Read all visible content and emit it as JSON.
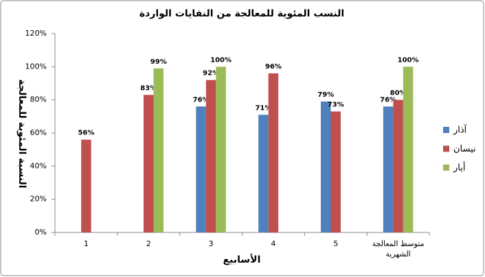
{
  "chart_data": {
    "type": "bar",
    "title": "النسب المئوية للمعالجة من النفايات الواردة",
    "x_label": "الأسابيع",
    "y_label": "النسبة المئوية للمعالجة",
    "categories": [
      "1",
      "2",
      "3",
      "4",
      "5",
      "متوسط المعالجة الشهرية"
    ],
    "series": [
      {
        "name": "آذار",
        "color": "#4f81bd",
        "values": [
          null,
          null,
          76,
          71,
          79,
          76
        ],
        "value_labels": [
          null,
          null,
          "76%",
          "71%",
          "79%",
          "76%"
        ]
      },
      {
        "name": "نيسان",
        "color": "#c0504d",
        "values": [
          56,
          83,
          92,
          96,
          73,
          80
        ],
        "value_labels": [
          "56%",
          "83%",
          "92%",
          "96%",
          "73%",
          "80%"
        ]
      },
      {
        "name": "أيار",
        "color": "#9bbb59",
        "values": [
          null,
          99,
          100,
          null,
          null,
          100
        ],
        "value_labels": [
          null,
          "99%",
          "100%",
          null,
          null,
          "100%"
        ]
      }
    ],
    "ylim": [
      0,
      120
    ],
    "yticks": [
      {
        "value": 0,
        "label": "0%"
      },
      {
        "value": 20,
        "label": "20%"
      },
      {
        "value": 40,
        "label": "40%"
      },
      {
        "value": 60,
        "label": "60%"
      },
      {
        "value": 80,
        "label": "80%"
      },
      {
        "value": 100,
        "label": "100%"
      },
      {
        "value": 120,
        "label": "120%"
      }
    ],
    "legend": "right"
  }
}
